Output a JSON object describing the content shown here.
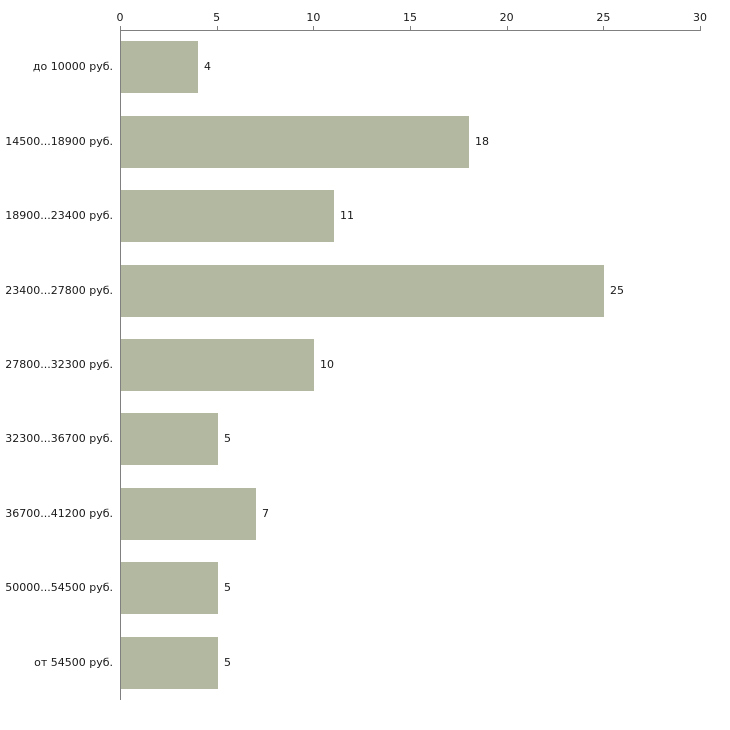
{
  "chart_data": {
    "type": "bar",
    "orientation": "horizontal",
    "title": "",
    "xlabel": "",
    "ylabel": "",
    "categories": [
      "до 10000 руб.",
      "14500...18900 руб.",
      "18900...23400 руб.",
      "23400...27800 руб.",
      "27800...32300 руб.",
      "32300...36700 руб.",
      "36700...41200 руб.",
      "50000...54500 руб.",
      "от 54500 руб."
    ],
    "values": [
      4,
      18,
      11,
      25,
      10,
      5,
      7,
      5,
      5
    ],
    "value_labels": [
      "4",
      "18",
      "11",
      "25",
      "10",
      "5",
      "7",
      "5",
      "5"
    ],
    "x_ticks": [
      0,
      5,
      10,
      15,
      20,
      25,
      30
    ],
    "xlim": [
      0,
      30
    ],
    "grid": false,
    "legend": "none",
    "axis_position": "top-left",
    "bar_color": "#b3b8a1",
    "axis_color": "#808080",
    "text_color": "#1a1a1a"
  }
}
